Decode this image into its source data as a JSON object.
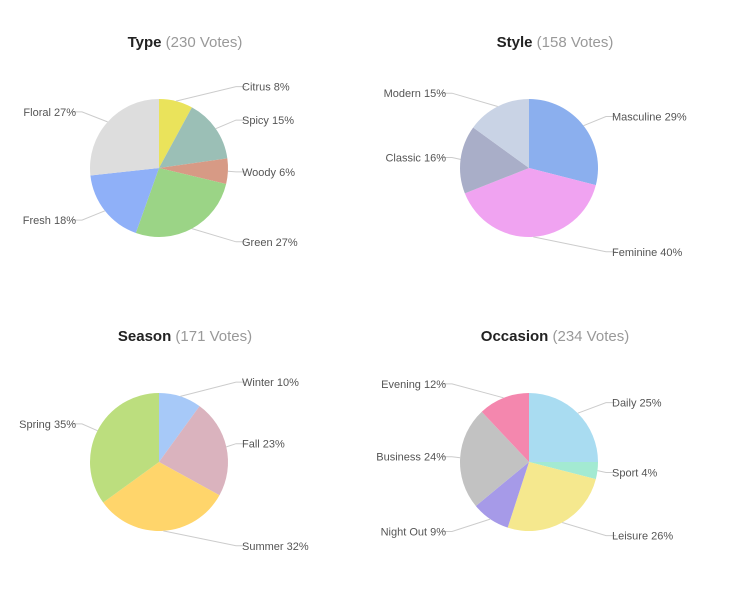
{
  "chart_data": [
    {
      "type": "pie",
      "title": "Type",
      "subtitle": "(230 Votes)",
      "slices": [
        {
          "label": "Citrus 8%",
          "value": 8,
          "color": "#EAE35B"
        },
        {
          "label": "Spicy 15%",
          "value": 15,
          "color": "#9BBFB6"
        },
        {
          "label": "Woody 6%",
          "value": 6,
          "color": "#D79A85"
        },
        {
          "label": "Green 27%",
          "value": 27,
          "color": "#9BD486"
        },
        {
          "label": "Fresh 18%",
          "value": 18,
          "color": "#8FB0F8"
        },
        {
          "label": "Floral 27%",
          "value": 27,
          "color": "#DDDDDD"
        }
      ]
    },
    {
      "type": "pie",
      "title": "Style",
      "subtitle": "(158 Votes)",
      "slices": [
        {
          "label": "Masculine 29%",
          "value": 29,
          "color": "#8BAFEE"
        },
        {
          "label": "Feminine 40%",
          "value": 40,
          "color": "#F0A3F1"
        },
        {
          "label": "Classic 16%",
          "value": 16,
          "color": "#A9AEC8"
        },
        {
          "label": "Modern 15%",
          "value": 15,
          "color": "#C9D3E5"
        }
      ]
    },
    {
      "type": "pie",
      "title": "Season",
      "subtitle": "(171 Votes)",
      "slices": [
        {
          "label": "Winter 10%",
          "value": 10,
          "color": "#A7C9F8"
        },
        {
          "label": "Fall 23%",
          "value": 23,
          "color": "#DAB3BE"
        },
        {
          "label": "Summer 32%",
          "value": 32,
          "color": "#FFD56B"
        },
        {
          "label": "Spring 35%",
          "value": 35,
          "color": "#BCDE7E"
        }
      ]
    },
    {
      "type": "pie",
      "title": "Occasion",
      "subtitle": "(234 Votes)",
      "slices": [
        {
          "label": "Daily 25%",
          "value": 25,
          "color": "#A9DCF1"
        },
        {
          "label": "Sport 4%",
          "value": 4,
          "color": "#A3EAD2"
        },
        {
          "label": "Leisure 26%",
          "value": 26,
          "color": "#F5E88E"
        },
        {
          "label": "Night Out 9%",
          "value": 9,
          "color": "#A69AE8"
        },
        {
          "label": "Business 24%",
          "value": 24,
          "color": "#C2C2C2"
        },
        {
          "label": "Evening 12%",
          "value": 12,
          "color": "#F487AE"
        }
      ]
    }
  ]
}
